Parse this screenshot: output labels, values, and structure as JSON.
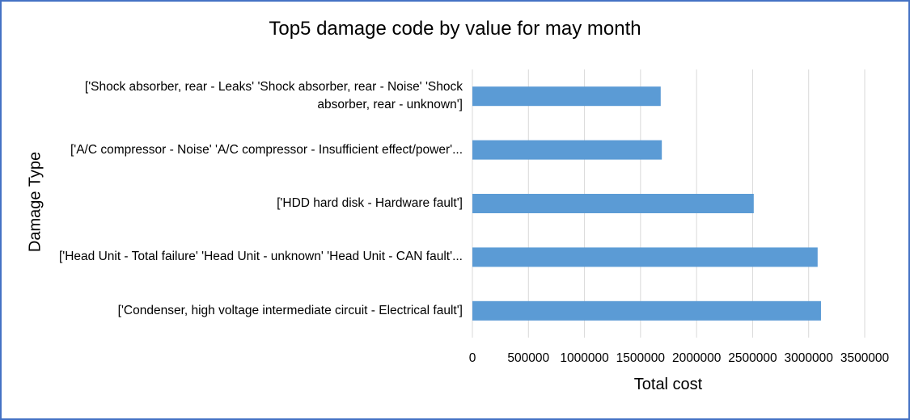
{
  "chart_data": {
    "type": "bar",
    "orientation": "horizontal",
    "title": "Top5 damage code by value for may month",
    "xlabel": "Total cost",
    "ylabel": "Damage Type",
    "categories": [
      "['Shock absorber, rear - Leaks' 'Shock absorber, rear - Noise' 'Shock absorber, rear - unknown']",
      "['A/C compressor - Noise' 'A/C compressor - Insufficient effect/power'...",
      "['HDD hard disk - Hardware fault']",
      "['Head Unit - Total failure' 'Head Unit - unknown' 'Head Unit - CAN fault'...",
      "['Condenser, high voltage intermediate circuit - Electrical fault']"
    ],
    "values": [
      1680000,
      1690000,
      2510000,
      3080000,
      3110000
    ],
    "xlim": [
      0,
      3500000
    ],
    "xticks": [
      "0",
      "500000",
      "1000000",
      "1500000",
      "2000000",
      "2500000",
      "3000000",
      "3500000"
    ],
    "grid": true,
    "bar_color": "#5b9bd5",
    "grid_color": "#d9d9d9",
    "border_color": "#4472c4"
  }
}
